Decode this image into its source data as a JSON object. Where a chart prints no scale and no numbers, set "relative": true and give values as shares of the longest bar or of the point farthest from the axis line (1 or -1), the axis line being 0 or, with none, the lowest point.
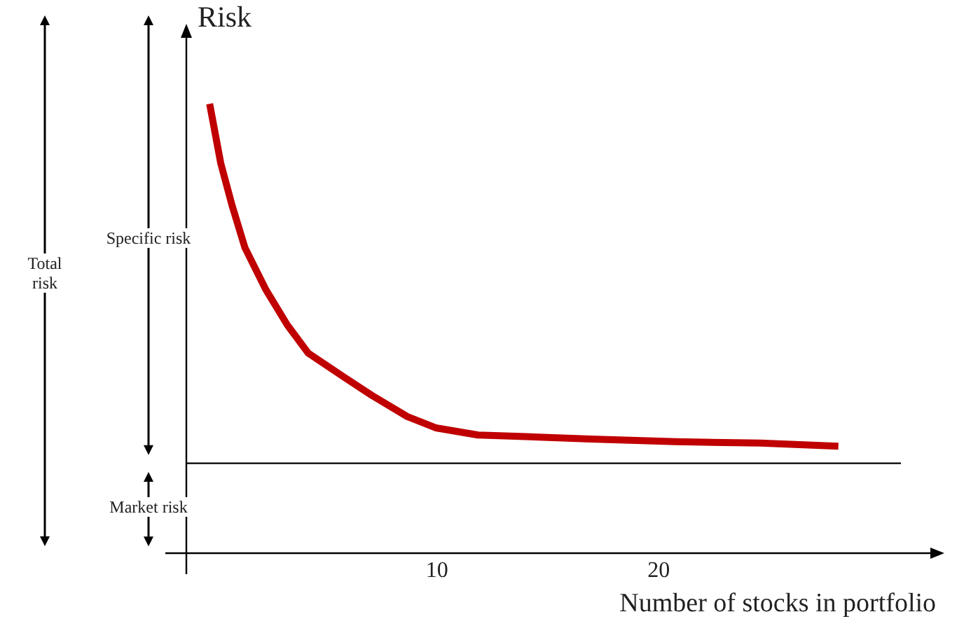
{
  "chart_data": {
    "type": "line",
    "relative": true,
    "ylabel": "Risk",
    "xlabel": "Number of stocks in portfolio",
    "x": [
      -0.25,
      0.25,
      0.76,
      1.34,
      2.29,
      3.25,
      4.2,
      5.8,
      7.07,
      8.66,
      9.94,
      11.85,
      13.76,
      16.94,
      20.76,
      24.59,
      28.1
    ],
    "series": [
      {
        "color": "#c00000",
        "values": [
          1,
          0.868,
          0.774,
          0.68,
          0.586,
          0.508,
          0.445,
          0.392,
          0.351,
          0.304,
          0.279,
          0.263,
          0.26,
          0.254,
          0.248,
          0.245,
          0.238
        ]
      }
    ],
    "xlim": [
      -1.3,
      32.5
    ],
    "xticks": [
      10,
      20
    ],
    "ref_lines": [
      {
        "axis": "y",
        "value": 0.2,
        "color": "#000000"
      }
    ],
    "annotations": [
      "Total risk",
      "Specific risk",
      "Market risk"
    ],
    "grid": false,
    "legend": false,
    "marker": "none",
    "line_style": "solid"
  }
}
